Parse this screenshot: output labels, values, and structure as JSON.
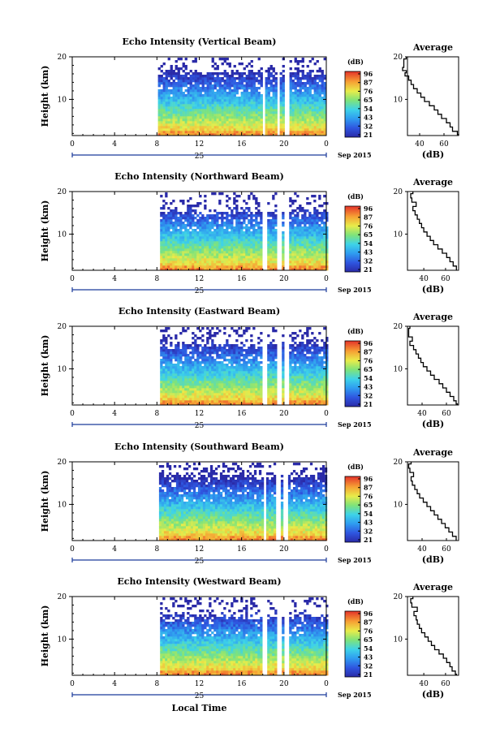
{
  "chart_data": [
    {
      "type": "heatmap",
      "title": "Echo Intensity (Vertical Beam)",
      "ylabel": "Height (km)",
      "xticks": [
        "0",
        "4",
        "8",
        "12",
        "16",
        "20",
        "0"
      ],
      "yticks": [
        "10",
        "20"
      ],
      "date_day": "25",
      "date_label": "Sep 2015",
      "x_range_hours": [
        0,
        24
      ],
      "y_range_km": [
        1.5,
        20
      ],
      "data_start_hour": 8.1,
      "colorbar": {
        "label": "(dB)",
        "ticks": [
          "96",
          "87",
          "76",
          "65",
          "54",
          "43",
          "32",
          "21"
        ],
        "range": [
          21,
          96
        ]
      },
      "gaps_hours": [
        [
          17.9,
          18.2
        ],
        [
          19.2,
          19.6
        ],
        [
          19.9,
          20.3
        ]
      ],
      "cloud_top_km": 16.5,
      "average_profile": {
        "title": "Average",
        "xlabel": "(dB)",
        "xticks": [
          "40",
          "60"
        ],
        "xlim": [
          30,
          72
        ],
        "yticks": [
          "10",
          "20"
        ],
        "height_km": [
          1.5,
          2,
          3,
          4,
          5,
          6,
          7,
          8,
          9,
          10,
          11,
          12,
          13,
          14,
          15,
          16,
          16.5,
          17,
          18,
          19,
          20
        ],
        "db": [
          72,
          71,
          67,
          65,
          62,
          58,
          55,
          52,
          48,
          44,
          41,
          38,
          35,
          33,
          31,
          28,
          29,
          26,
          27,
          27,
          29
        ]
      }
    },
    {
      "type": "heatmap",
      "title": "Echo Intensity (Northward Beam)",
      "ylabel": "Height (km)",
      "xticks": [
        "0",
        "4",
        "8",
        "12",
        "16",
        "20",
        "0"
      ],
      "yticks": [
        "10",
        "20"
      ],
      "date_day": "25",
      "date_label": "Sep 2015",
      "x_range_hours": [
        0,
        24
      ],
      "y_range_km": [
        1.5,
        20
      ],
      "data_start_hour": 8.3,
      "colorbar": {
        "label": "(dB)",
        "ticks": [
          "96",
          "87",
          "76",
          "65",
          "54",
          "43",
          "32",
          "21"
        ],
        "range": [
          21,
          96
        ]
      },
      "gaps_hours": [
        [
          17.9,
          18.2
        ],
        [
          19.2,
          19.6
        ],
        [
          19.9,
          20.3
        ]
      ],
      "cloud_top_km": 15.5,
      "average_profile": {
        "title": "Average",
        "xlabel": "(dB)",
        "xticks": [
          "40",
          "60"
        ],
        "xlim": [
          25,
          72
        ],
        "yticks": [
          "10",
          "20"
        ],
        "height_km": [
          1.5,
          2,
          3,
          4,
          5,
          6,
          7,
          8,
          9,
          10,
          11,
          12,
          13,
          14,
          15,
          16,
          17,
          18,
          19,
          20
        ],
        "db": [
          70,
          70,
          67,
          64,
          61,
          57,
          53,
          49,
          46,
          43,
          40,
          38,
          36,
          34,
          32,
          30,
          33,
          29,
          28,
          30
        ]
      }
    },
    {
      "type": "heatmap",
      "title": "Echo Intensity (Eastward Beam)",
      "ylabel": "Height (km)",
      "xticks": [
        "0",
        "4",
        "8",
        "12",
        "16",
        "20",
        "0"
      ],
      "yticks": [
        "10",
        "20"
      ],
      "date_day": "25",
      "date_label": "Sep 2015",
      "x_range_hours": [
        0,
        24
      ],
      "y_range_km": [
        1.5,
        20
      ],
      "data_start_hour": 8.3,
      "colorbar": {
        "label": "(dB)",
        "ticks": [
          "96",
          "87",
          "76",
          "65",
          "54",
          "43",
          "32",
          "21"
        ],
        "range": [
          21,
          96
        ]
      },
      "gaps_hours": [
        [
          17.9,
          18.2
        ],
        [
          19.2,
          19.6
        ],
        [
          19.9,
          20.3
        ]
      ],
      "cloud_top_km": 16,
      "average_profile": {
        "title": "Average",
        "xlabel": "(dB)",
        "xticks": [
          "40",
          "60"
        ],
        "xlim": [
          28,
          70
        ],
        "yticks": [
          "10",
          "20"
        ],
        "height_km": [
          1.5,
          2,
          3,
          4,
          5,
          6,
          7,
          8,
          9,
          10,
          11,
          12,
          13,
          14,
          15,
          16,
          17,
          18,
          19,
          20
        ],
        "db": [
          69,
          68,
          66,
          63,
          60,
          57,
          54,
          50,
          47,
          44,
          41,
          39,
          37,
          35,
          33,
          30,
          32,
          29,
          29,
          30
        ]
      }
    },
    {
      "type": "heatmap",
      "title": "Echo Intensity (Southward Beam)",
      "ylabel": "Height (km)",
      "xticks": [
        "0",
        "4",
        "8",
        "12",
        "16",
        "20",
        "0"
      ],
      "yticks": [
        "10",
        "20"
      ],
      "date_day": "25",
      "date_label": "Sep 2015",
      "x_range_hours": [
        0,
        24
      ],
      "y_range_km": [
        1.5,
        20
      ],
      "data_start_hour": 8.2,
      "colorbar": {
        "label": "(dB)",
        "ticks": [
          "96",
          "87",
          "76",
          "65",
          "54",
          "43",
          "32",
          "21"
        ],
        "range": [
          21,
          96
        ]
      },
      "gaps_hours": [
        [
          17.9,
          18.2
        ],
        [
          19.2,
          19.6
        ],
        [
          19.9,
          20.3
        ]
      ],
      "cloud_top_km": 17,
      "average_profile": {
        "title": "Average",
        "xlabel": "(dB)",
        "xticks": [
          "40",
          "60"
        ],
        "xlim": [
          28,
          70
        ],
        "yticks": [
          "10",
          "20"
        ],
        "height_km": [
          1.5,
          2,
          3,
          4,
          5,
          6,
          7,
          8,
          9,
          10,
          11,
          12,
          13,
          14,
          15,
          16,
          17,
          18,
          19,
          20
        ],
        "db": [
          68,
          68,
          65,
          62,
          59,
          56,
          53,
          50,
          47,
          44,
          41,
          38,
          36,
          34,
          32,
          31,
          33,
          30,
          29,
          31
        ]
      }
    },
    {
      "type": "heatmap",
      "title": "Echo Intensity (Westward Beam)",
      "ylabel": "Height (km)",
      "xticks": [
        "0",
        "4",
        "8",
        "12",
        "16",
        "20",
        "0"
      ],
      "yticks": [
        "10",
        "20"
      ],
      "date_day": "25",
      "date_label": "Sep 2015",
      "xlabel": "Local Time",
      "x_range_hours": [
        0,
        24
      ],
      "y_range_km": [
        1.5,
        20
      ],
      "data_start_hour": 8.3,
      "colorbar": {
        "label": "(dB)",
        "ticks": [
          "96",
          "87",
          "76",
          "65",
          "54",
          "43",
          "32",
          "21"
        ],
        "range": [
          21,
          96
        ]
      },
      "gaps_hours": [
        [
          17.9,
          18.2
        ],
        [
          19.2,
          19.6
        ],
        [
          19.9,
          20.3
        ]
      ],
      "cloud_top_km": 15.5,
      "average_profile": {
        "title": "Average",
        "xlabel": "(dB)",
        "xticks": [
          "40",
          "60"
        ],
        "xlim": [
          25,
          72
        ],
        "yticks": [
          "10",
          "20"
        ],
        "height_km": [
          1.5,
          2,
          3,
          4,
          5,
          6,
          7,
          8,
          9,
          10,
          11,
          12,
          13,
          14,
          15,
          16,
          17,
          18,
          19,
          20
        ],
        "db": [
          70,
          69,
          66,
          64,
          61,
          58,
          54,
          50,
          47,
          44,
          41,
          38,
          36,
          34,
          33,
          31,
          34,
          29,
          28,
          30
        ]
      }
    }
  ]
}
